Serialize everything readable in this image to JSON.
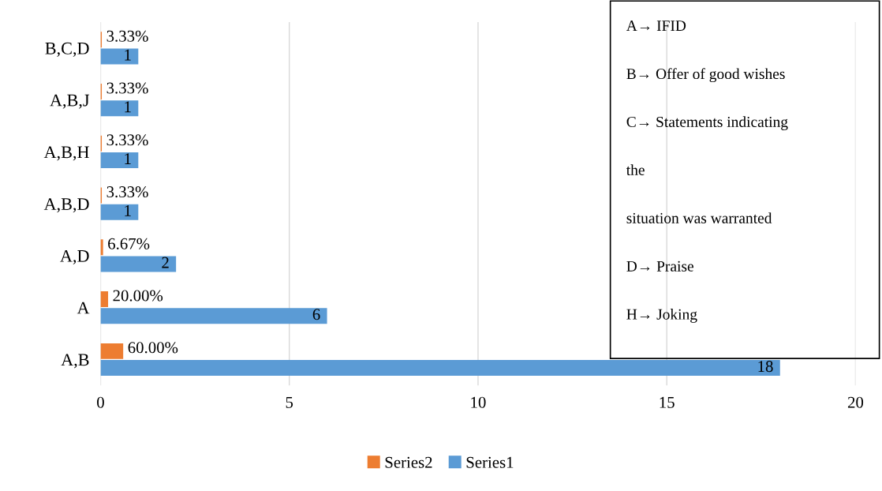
{
  "chart_data": {
    "type": "bar",
    "orientation": "horizontal",
    "categories": [
      "B,C,D",
      "A,B,J",
      "A,B,H",
      "A,B,D",
      "A,D",
      "A",
      "A,B"
    ],
    "series": [
      {
        "name": "Series2",
        "color": "#ed7d31",
        "values": [
          0.0333,
          0.0333,
          0.0333,
          0.0333,
          0.0667,
          0.2,
          0.6
        ],
        "value_labels": [
          "3.33%",
          "3.33%",
          "3.33%",
          "3.33%",
          "6.67%",
          "20.00%",
          "60.00%"
        ]
      },
      {
        "name": "Series1",
        "color": "#5b9bd5",
        "values": [
          1,
          1,
          1,
          1,
          2,
          6,
          18
        ],
        "value_labels": [
          "1",
          "1",
          "1",
          "1",
          "2",
          "6",
          "18"
        ]
      }
    ],
    "xlim": [
      0,
      20
    ],
    "xticks": [
      0,
      5,
      10,
      15,
      20
    ],
    "grid": "x",
    "legend": "bottom",
    "annotations": [
      "A→ IFID",
      "B→ Offer of good wishes",
      "C→ Statements indicating\nthe\nsituation was warranted",
      "D→ Praise",
      "H→ Joking"
    ]
  }
}
